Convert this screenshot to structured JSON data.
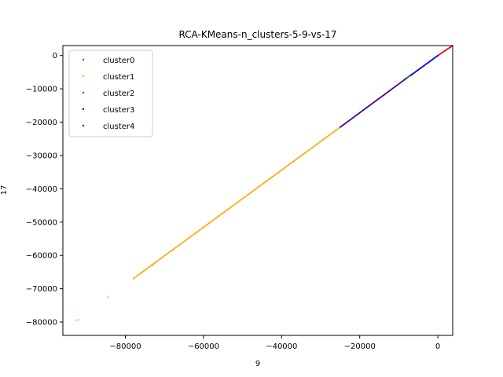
{
  "chart_data": {
    "type": "scatter",
    "title": "RCA-KMeans-n_clusters-5-9-vs-17",
    "xlabel": "9",
    "ylabel": "17",
    "xlim": [
      -96000,
      3800
    ],
    "ylim": [
      -84000,
      3000
    ],
    "x_ticks": [
      -80000,
      -60000,
      -40000,
      -20000,
      0
    ],
    "x_tick_labels": [
      "−80000",
      "−60000",
      "−40000",
      "−20000",
      "0"
    ],
    "y_ticks": [
      0,
      -10000,
      -20000,
      -30000,
      -40000,
      -50000,
      -60000,
      -70000,
      -80000
    ],
    "y_tick_labels": [
      "0",
      "−10000",
      "−20000",
      "−30000",
      "−40000",
      "−50000",
      "−60000",
      "−70000",
      "−80000"
    ],
    "grid": false,
    "legend_position": "top-left",
    "series": [
      {
        "name": "cluster0",
        "color": "#ff0000",
        "x_range": [
          0,
          3800
        ],
        "y_range": [
          0,
          3000
        ],
        "point_count": 40
      },
      {
        "name": "cluster1",
        "color": "#ffa500",
        "x_range": [
          -78000,
          -25000
        ],
        "y_range": [
          -67000,
          -21500
        ],
        "point_count": 320,
        "outliers": [
          {
            "x": -92500,
            "y": -79500
          },
          {
            "x": -92000,
            "y": -79300
          },
          {
            "x": -84500,
            "y": -72500
          },
          {
            "x": -76000,
            "y": -65500
          },
          {
            "x": -74500,
            "y": -64000
          },
          {
            "x": -73000,
            "y": -63000
          }
        ]
      },
      {
        "name": "cluster2",
        "color": "#008000",
        "x_range": [
          -8500,
          -6500
        ],
        "y_range": [
          -7200,
          -5500
        ],
        "point_count": 25
      },
      {
        "name": "cluster3",
        "color": "#0000ff",
        "x_range": [
          -7000,
          0
        ],
        "y_range": [
          -6000,
          0
        ],
        "point_count": 80
      },
      {
        "name": "cluster4",
        "color": "#4b0082",
        "x_range": [
          -25000,
          -8000
        ],
        "y_range": [
          -21500,
          -6800
        ],
        "point_count": 180
      }
    ]
  }
}
